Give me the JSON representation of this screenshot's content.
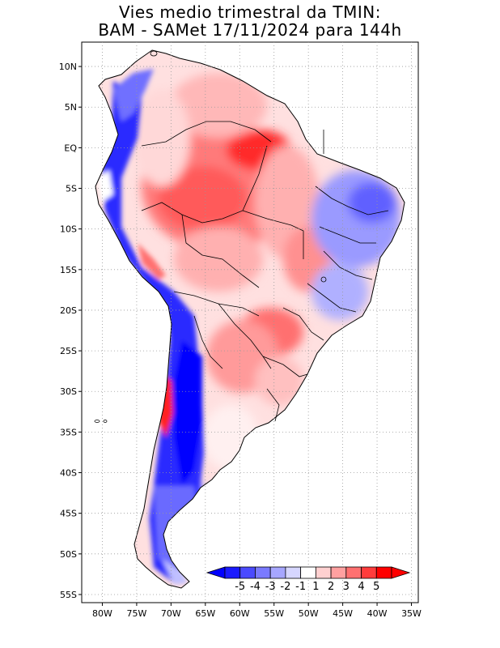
{
  "title": {
    "line1": "Vies medio trimestral da TMIN:",
    "line2": "BAM - SAMet 17/11/2024  para 144h"
  },
  "map": {
    "region": "South America",
    "lon_range": [
      -83,
      -34
    ],
    "lat_range": [
      -56,
      13
    ],
    "lat_ticks": [
      {
        "value": 10,
        "label": "10N"
      },
      {
        "value": 5,
        "label": "5N"
      },
      {
        "value": 0,
        "label": "EQ"
      },
      {
        "value": -5,
        "label": "5S"
      },
      {
        "value": -10,
        "label": "10S"
      },
      {
        "value": -15,
        "label": "15S"
      },
      {
        "value": -20,
        "label": "20S"
      },
      {
        "value": -25,
        "label": "25S"
      },
      {
        "value": -30,
        "label": "30S"
      },
      {
        "value": -35,
        "label": "35S"
      },
      {
        "value": -40,
        "label": "40S"
      },
      {
        "value": -45,
        "label": "45S"
      },
      {
        "value": -50,
        "label": "50S"
      },
      {
        "value": -55,
        "label": "55S"
      }
    ],
    "lon_ticks": [
      {
        "value": -80,
        "label": "80W"
      },
      {
        "value": -75,
        "label": "75W"
      },
      {
        "value": -70,
        "label": "70W"
      },
      {
        "value": -65,
        "label": "65W"
      },
      {
        "value": -60,
        "label": "60W"
      },
      {
        "value": -55,
        "label": "55W"
      },
      {
        "value": -50,
        "label": "50W"
      },
      {
        "value": -45,
        "label": "45W"
      },
      {
        "value": -40,
        "label": "40W"
      },
      {
        "value": -35,
        "label": "35W"
      }
    ]
  },
  "colorbar": {
    "labels": [
      "-5",
      "-4",
      "-3",
      "-2",
      "-1",
      "1",
      "2",
      "3",
      "4",
      "5"
    ],
    "colors": [
      "#1a1aff",
      "#4a4aff",
      "#7a7aff",
      "#a6a6ff",
      "#d6d6ff",
      "#ffffff",
      "#ffd0d0",
      "#ffa0a0",
      "#ff7070",
      "#ff3c3c",
      "#ff0000"
    ],
    "under_color": "#0000ff",
    "over_color": "#ff0000"
  },
  "colors": {
    "cold_strong": "#0a0aff",
    "cold_mid": "#5a5aff",
    "cold_light": "#b0b0ff",
    "warm_light": "#ffc8c8",
    "warm_mid": "#ff8080",
    "warm_strong": "#ff3030",
    "coast": "#000000"
  }
}
